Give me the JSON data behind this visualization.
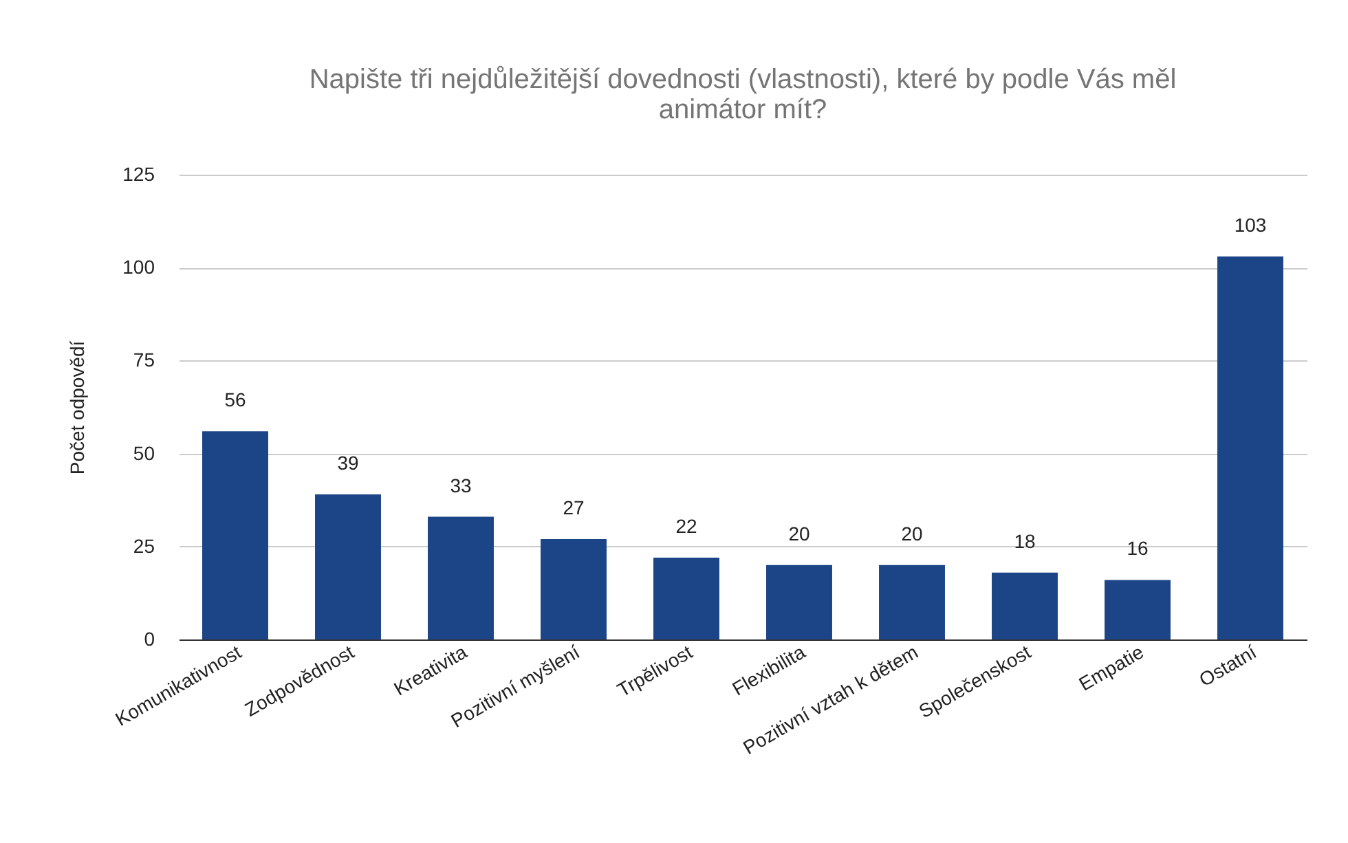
{
  "chart_data": {
    "type": "bar",
    "title": "Napište tři nejdůležitější dovednosti (vlastnosti), které by podle Vás měl animátor mít?",
    "ylabel": "Počet odpovědí",
    "categories": [
      "Komunikativnost",
      "Zodpovědnost",
      "Kreativita",
      "Pozitivní myšlení",
      "Trpělivost",
      "Flexibilita",
      "Pozitivní vztah k dětem",
      "Společenskost",
      "Empatie",
      "Ostatní"
    ],
    "values": [
      56,
      39,
      33,
      27,
      22,
      20,
      20,
      18,
      16,
      103
    ],
    "color": "#1c4587",
    "ylim": [
      0,
      125
    ],
    "yticks": [
      0,
      25,
      50,
      75,
      100,
      125
    ],
    "grid": "y",
    "data_labels": true
  }
}
